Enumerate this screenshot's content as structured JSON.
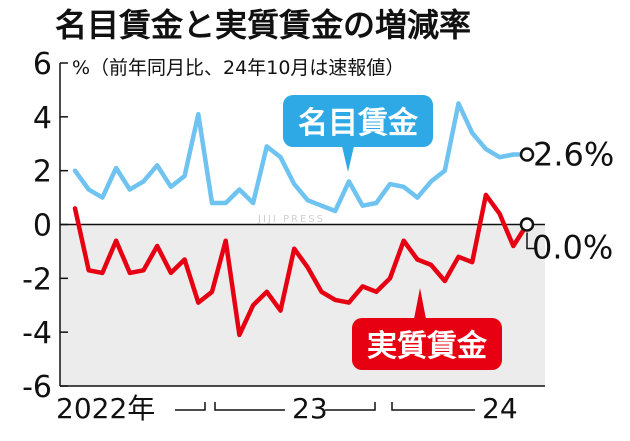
{
  "chart_data": {
    "type": "line",
    "title": "名目賃金と実質賃金の増減率",
    "subtitle": "%（前年同月比、24年10月は速報値）",
    "watermark": "JIJI PRESS",
    "ylim": [
      -6,
      6
    ],
    "yticks": [
      "6",
      "4",
      "2",
      "0",
      "-2",
      "-4",
      "-6"
    ],
    "x_labels": [
      "2022年",
      "23",
      "24"
    ],
    "x": [
      "2022-01",
      "2022-02",
      "2022-03",
      "2022-04",
      "2022-05",
      "2022-06",
      "2022-07",
      "2022-08",
      "2022-09",
      "2022-10",
      "2022-11",
      "2022-12",
      "2023-01",
      "2023-02",
      "2023-03",
      "2023-04",
      "2023-05",
      "2023-06",
      "2023-07",
      "2023-08",
      "2023-09",
      "2023-10",
      "2023-11",
      "2023-12",
      "2024-01",
      "2024-02",
      "2024-03",
      "2024-04",
      "2024-05",
      "2024-06",
      "2024-07",
      "2024-08",
      "2024-09",
      "2024-10"
    ],
    "series": [
      {
        "name": "名目賃金",
        "color": "#6ec3f0",
        "badge_color": "#2fa8e6",
        "values": [
          2.0,
          1.3,
          1.0,
          2.1,
          1.3,
          1.6,
          2.2,
          1.4,
          1.8,
          4.1,
          0.8,
          0.8,
          1.3,
          0.8,
          2.9,
          2.5,
          1.5,
          0.9,
          0.7,
          0.5,
          1.6,
          0.7,
          0.8,
          1.5,
          1.4,
          1.0,
          1.6,
          2.0,
          4.5,
          3.4,
          2.8,
          2.5,
          2.6,
          2.6
        ],
        "end_label": "2.6%"
      },
      {
        "name": "実質賃金",
        "color": "#e60012",
        "badge_color": "#e60012",
        "values": [
          0.6,
          -1.7,
          -1.8,
          -0.6,
          -1.8,
          -1.7,
          -0.8,
          -1.8,
          -1.3,
          -2.9,
          -2.5,
          -0.6,
          -4.1,
          -3.0,
          -2.5,
          -3.2,
          -0.9,
          -1.6,
          -2.5,
          -2.8,
          -2.9,
          -2.3,
          -2.5,
          -2.0,
          -0.6,
          -1.3,
          -1.5,
          -2.1,
          -1.2,
          -1.4,
          1.1,
          0.4,
          -0.8,
          0.0
        ],
        "end_label": "0.0%"
      }
    ]
  }
}
